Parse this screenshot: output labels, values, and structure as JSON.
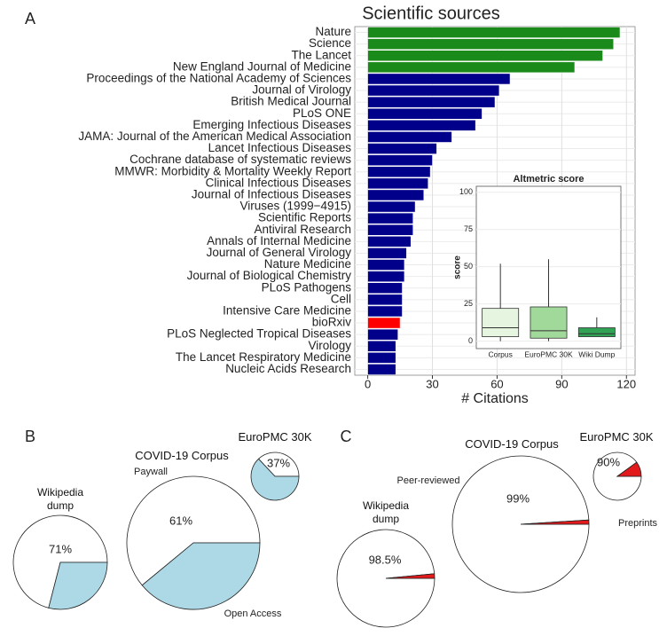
{
  "chart_data": [
    {
      "type": "bar",
      "panel": "A",
      "title": "Scientific sources",
      "xlabel": "# Citations",
      "orientation": "horizontal",
      "categories": [
        "Nature",
        "Science",
        "The Lancet",
        "New England Journal of Medicine",
        "Proceedings of the National Academy of Sciences",
        "Journal of Virology",
        "British Medical Journal",
        "PLoS ONE",
        "Emerging Infectious Diseases",
        "JAMA: Journal of the American Medical Association",
        "Lancet Infectious Diseases",
        "Cochrane database of systematic reviews",
        "MMWR: Morbidity & Mortality Weekly Report",
        "Clinical Infectious Diseases",
        "Journal of Infectious Diseases",
        "Viruses (1999−4915)",
        "Scientific Reports",
        "Antiviral Research",
        "Annals of Internal Medicine",
        "Journal of General Virology",
        "Nature Medicine",
        "Journal of Biological Chemistry",
        "PLoS Pathogens",
        "Cell",
        "Intensive Care Medicine",
        "bioRxiv",
        "PLoS Neglected Tropical Diseases",
        "Virology",
        "The Lancet Respiratory Medicine",
        "Nucleic Acids Research"
      ],
      "values": [
        117,
        114,
        109,
        96,
        66,
        61,
        59,
        53,
        50,
        39,
        32,
        30,
        29,
        28,
        26,
        22,
        21,
        21,
        20,
        18,
        17,
        17,
        16,
        16,
        16,
        15,
        14,
        13,
        13,
        13
      ],
      "colors": [
        "#1a8a1a",
        "#1a8a1a",
        "#1a8a1a",
        "#1a8a1a",
        "#00008b",
        "#00008b",
        "#00008b",
        "#00008b",
        "#00008b",
        "#00008b",
        "#00008b",
        "#00008b",
        "#00008b",
        "#00008b",
        "#00008b",
        "#00008b",
        "#00008b",
        "#00008b",
        "#00008b",
        "#00008b",
        "#00008b",
        "#00008b",
        "#00008b",
        "#00008b",
        "#00008b",
        "#ff0000",
        "#00008b",
        "#00008b",
        "#00008b",
        "#00008b"
      ],
      "xlim": [
        -6,
        124
      ],
      "xticks": [
        0,
        30,
        60,
        90,
        120
      ],
      "grid": true
    },
    {
      "type": "box",
      "title": "Altmetric score",
      "ylabel": "score",
      "categories": [
        "Corpus",
        "EuroPMC 30K",
        "Wiki Dump"
      ],
      "boxes": [
        {
          "min": 0,
          "q1": 3,
          "median": 9,
          "q3": 22,
          "max": 52
        },
        {
          "min": 0,
          "q1": 2,
          "median": 7,
          "q3": 23,
          "max": 55
        },
        {
          "min": 3,
          "q1": 3,
          "median": 5,
          "q3": 9,
          "max": 16
        }
      ],
      "colors": [
        "#e5f5e0",
        "#a1d99b",
        "#31a354"
      ],
      "ylim": [
        -5,
        104
      ],
      "yticks": [
        0,
        25,
        50,
        75,
        100
      ],
      "grid": true
    },
    {
      "type": "pie",
      "panel": "B",
      "title": "Wikipedia dump",
      "categories": [
        null,
        null
      ],
      "values": [
        71,
        29
      ],
      "value_labels": [
        "71%",
        null
      ],
      "colors": [
        "#ffffff",
        "#add8e6"
      ]
    },
    {
      "type": "pie",
      "title": "COVID-19 Corpus",
      "categories": [
        "Paywall",
        "Open Access"
      ],
      "values": [
        61,
        39
      ],
      "value_labels": [
        "61%",
        null
      ],
      "colors": [
        "#ffffff",
        "#add8e6"
      ]
    },
    {
      "type": "pie",
      "title": "EuroPMC 30K",
      "categories": [
        null,
        null
      ],
      "values": [
        37,
        63
      ],
      "value_labels": [
        "37%",
        null
      ],
      "colors": [
        "#ffffff",
        "#add8e6"
      ]
    },
    {
      "type": "pie",
      "panel": "C",
      "title": "Wikipedia dump",
      "categories": [
        null,
        null
      ],
      "values": [
        98.5,
        1.5
      ],
      "value_labels": [
        "98.5%",
        null
      ],
      "colors": [
        "#ffffff",
        "#e31a1c"
      ]
    },
    {
      "type": "pie",
      "title": "COVID-19 Corpus",
      "categories": [
        "Peer-reviewed",
        "Preprints"
      ],
      "values": [
        99,
        1
      ],
      "value_labels": [
        "99%",
        null
      ],
      "colors": [
        "#ffffff",
        "#e31a1c"
      ]
    },
    {
      "type": "pie",
      "title": "EuroPMC 30K",
      "categories": [
        null,
        null
      ],
      "values": [
        90,
        10
      ],
      "value_labels": [
        "90%",
        null
      ],
      "colors": [
        "#ffffff",
        "#e31a1c"
      ]
    }
  ]
}
